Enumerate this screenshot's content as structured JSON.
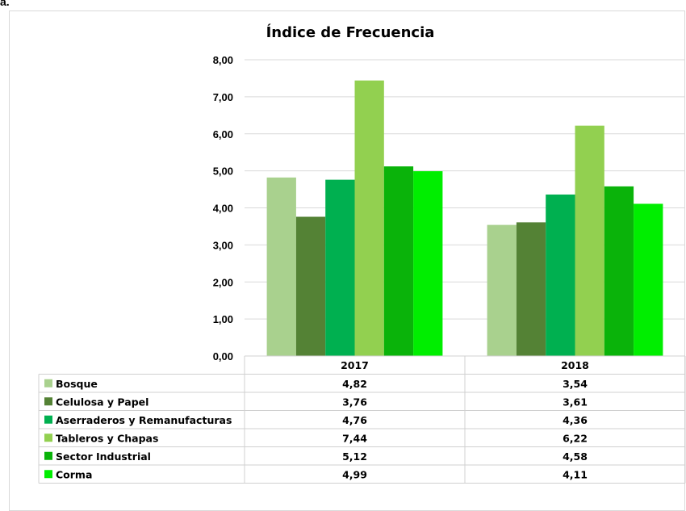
{
  "corner_text": "a.",
  "chart_data": {
    "type": "bar",
    "title": "Índice de Frecuencia",
    "categories": [
      "2017",
      "2018"
    ],
    "ylim": [
      0,
      8
    ],
    "yticks": [
      "0,00",
      "1,00",
      "2,00",
      "3,00",
      "4,00",
      "5,00",
      "6,00",
      "7,00",
      "8,00"
    ],
    "grid": true,
    "legend": "data-table-below",
    "series": [
      {
        "name": "Bosque",
        "color": "#a9d18e",
        "values": [
          4.82,
          3.54
        ],
        "labels": [
          "4,82",
          "3,54"
        ]
      },
      {
        "name": "Celulosa y Papel",
        "color": "#548235",
        "values": [
          3.76,
          3.61
        ],
        "labels": [
          "3,76",
          "3,61"
        ]
      },
      {
        "name": "Aserraderos y Remanufacturas",
        "color": "#00b050",
        "values": [
          4.76,
          4.36
        ],
        "labels": [
          "4,76",
          "4,36"
        ]
      },
      {
        "name": "Tableros y Chapas",
        "color": "#92d050",
        "values": [
          7.44,
          6.22
        ],
        "labels": [
          "7,44",
          "6,22"
        ]
      },
      {
        "name": "Sector Industrial",
        "color": "#0ab30a",
        "values": [
          5.12,
          4.58
        ],
        "labels": [
          "5,12",
          "4,58"
        ]
      },
      {
        "name": "Corma",
        "color": "#00ee00",
        "values": [
          4.99,
          4.11
        ],
        "labels": [
          "4,99",
          "4,11"
        ]
      }
    ]
  }
}
